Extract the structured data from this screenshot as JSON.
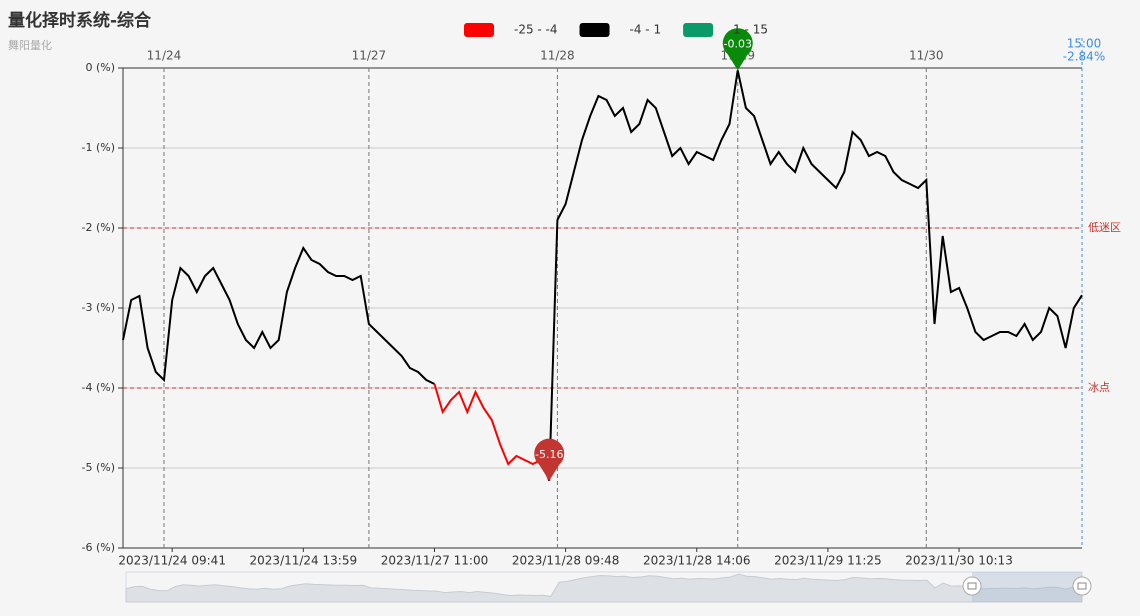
{
  "chart_data": {
    "type": "line",
    "title": "量化择时系统-综合",
    "subtitle": "舞阳量化",
    "pieces": [
      {
        "label": "-25 - -4",
        "min": -25,
        "max": -4,
        "color": "#ff0000"
      },
      {
        "label": "-4 - 1",
        "min": -4,
        "max": 1,
        "color": "#000000"
      },
      {
        "label": "1 - 15",
        "min": 1,
        "max": 15,
        "color": "#0a9a6a"
      }
    ],
    "categories": [
      null,
      null,
      null,
      null,
      null,
      null,
      "2023/11/24 09:41",
      null,
      null,
      null,
      null,
      null,
      null,
      null,
      null,
      null,
      null,
      null,
      null,
      null,
      null,
      null,
      "2023/11/24 13:59",
      null,
      null,
      null,
      null,
      null,
      null,
      null,
      null,
      null,
      null,
      null,
      null,
      null,
      null,
      null,
      "2023/11/27 11:00",
      null,
      null,
      null,
      null,
      null,
      null,
      null,
      null,
      null,
      null,
      null,
      null,
      null,
      null,
      null,
      "2023/11/28 09:48",
      null,
      null,
      null,
      null,
      null,
      null,
      null,
      null,
      null,
      null,
      null,
      null,
      null,
      null,
      null,
      "2023/11/28 14:06",
      null,
      null,
      null,
      null,
      null,
      null,
      null,
      null,
      null,
      null,
      null,
      null,
      null,
      null,
      null,
      "2023/11/29 11:25",
      null,
      null,
      null,
      null,
      null,
      null,
      null,
      null,
      null,
      null,
      null,
      null,
      null,
      null,
      null,
      "2023/11/30 10:13",
      null,
      null,
      null,
      null,
      null,
      null,
      null,
      null,
      null,
      null,
      null,
      null,
      null,
      null,
      null
    ],
    "day_labels": [
      null,
      null,
      null,
      null,
      null,
      "11/24",
      null,
      null,
      null,
      null,
      null,
      null,
      null,
      null,
      null,
      null,
      null,
      null,
      null,
      null,
      null,
      null,
      null,
      null,
      null,
      null,
      null,
      null,
      null,
      null,
      "11/27",
      null,
      null,
      null,
      null,
      null,
      null,
      null,
      null,
      null,
      null,
      null,
      null,
      null,
      null,
      null,
      null,
      null,
      null,
      null,
      null,
      null,
      null,
      "11/28",
      null,
      null,
      null,
      null,
      null,
      null,
      null,
      null,
      null,
      null,
      null,
      null,
      null,
      null,
      null,
      null,
      null,
      null,
      null,
      null,
      null,
      "11/29",
      null,
      null,
      null,
      null,
      null,
      null,
      null,
      null,
      null,
      null,
      null,
      null,
      null,
      null,
      null,
      null,
      null,
      null,
      null,
      null,
      null,
      null,
      "11/30",
      null,
      null,
      null,
      null,
      null,
      null,
      null,
      null,
      null,
      null,
      null,
      null,
      null,
      null,
      null,
      null,
      null,
      null,
      null
    ],
    "values": [
      -3.4,
      -2.9,
      -2.85,
      -3.5,
      -3.8,
      -3.9,
      -2.9,
      -2.5,
      -2.6,
      -2.8,
      -2.6,
      -2.5,
      -2.7,
      -2.9,
      -3.2,
      -3.4,
      -3.5,
      -3.3,
      -3.5,
      -3.4,
      -2.8,
      -2.5,
      -2.25,
      -2.4,
      -2.45,
      -2.55,
      -2.6,
      -2.6,
      -2.65,
      -2.6,
      -3.2,
      -3.3,
      -3.4,
      -3.5,
      -3.6,
      -3.75,
      -3.8,
      -3.9,
      -3.95,
      -4.3,
      -4.15,
      -4.05,
      -4.3,
      -4.05,
      -4.25,
      -4.4,
      -4.7,
      -4.95,
      -4.85,
      -4.9,
      -4.95,
      -4.9,
      -5.16,
      -1.9,
      -1.7,
      -1.3,
      -0.9,
      -0.6,
      -0.35,
      -0.4,
      -0.6,
      -0.5,
      -0.8,
      -0.7,
      -0.4,
      -0.5,
      -0.8,
      -1.1,
      -1.0,
      -1.2,
      -1.05,
      -1.1,
      -1.15,
      -0.9,
      -0.7,
      -0.03,
      -0.5,
      -0.6,
      -0.9,
      -1.2,
      -1.05,
      -1.2,
      -1.3,
      -1.0,
      -1.2,
      -1.3,
      -1.4,
      -1.5,
      -1.3,
      -0.8,
      -0.9,
      -1.1,
      -1.05,
      -1.1,
      -1.3,
      -1.4,
      -1.45,
      -1.5,
      -1.4,
      -3.2,
      -2.1,
      -2.8,
      -2.75,
      -3.0,
      -3.3,
      -3.4,
      -3.35,
      -3.3,
      -3.3,
      -3.35,
      -3.2,
      -3.4,
      -3.3,
      -3.0,
      -3.1,
      -3.5,
      -3.0,
      -2.84
    ],
    "ylim": [
      -6,
      0
    ],
    "yticks": [
      {
        "value": -6,
        "label": "-6 (%)"
      },
      {
        "value": -5,
        "label": "-5 (%)"
      },
      {
        "value": -4,
        "label": "-4 (%)"
      },
      {
        "value": -3,
        "label": "-3 (%)"
      },
      {
        "value": -2,
        "label": "-2 (%)"
      },
      {
        "value": -1,
        "label": "-1 (%)"
      },
      {
        "value": 0,
        "label": "0 (%)"
      }
    ],
    "grid": true,
    "mark_lines": [
      {
        "value": -2,
        "label": "低迷区"
      },
      {
        "value": -4,
        "label": "冰点"
      }
    ],
    "mark_points": [
      {
        "value": -0.03,
        "color": "#0a8a0a"
      },
      {
        "value": -5.16,
        "color": "#c23531"
      }
    ],
    "end_marker": {
      "label": "15:00",
      "value": -2.84,
      "value_label": "-2.84%"
    }
  }
}
